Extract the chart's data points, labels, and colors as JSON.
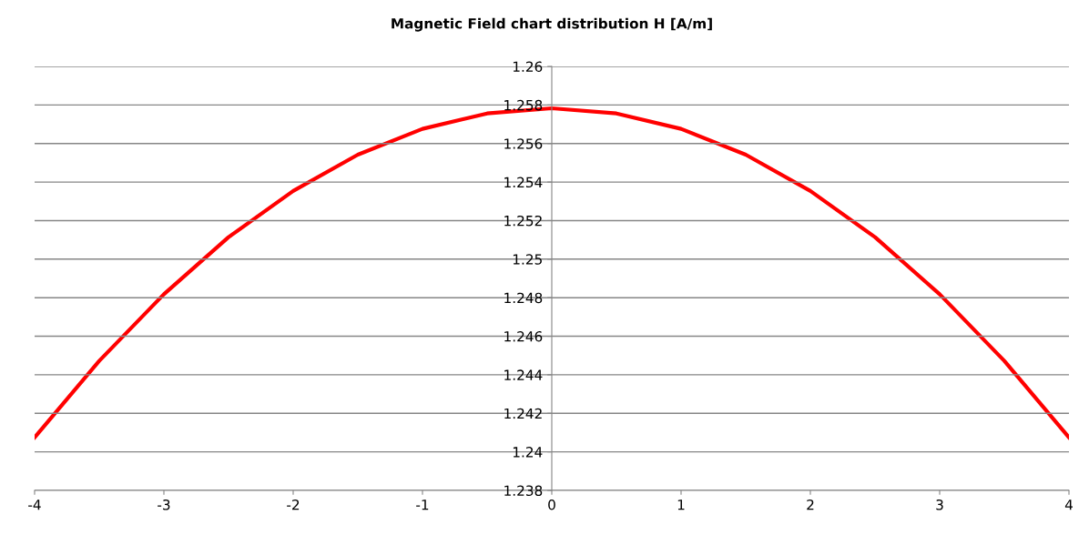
{
  "chart_data": {
    "type": "line",
    "title": "Magnetic Field chart distribution H [A/m]",
    "x": [
      -4,
      -3.5,
      -3,
      -2.5,
      -2,
      -1.5,
      -1,
      -0.5,
      0,
      0.5,
      1,
      1.5,
      2,
      2.5,
      3,
      3.5,
      4
    ],
    "series": [
      {
        "color": "#ff0000",
        "values": [
          1.24075,
          1.24472,
          1.24818,
          1.25114,
          1.25354,
          1.25542,
          1.25676,
          1.25756,
          1.25783,
          1.25756,
          1.25676,
          1.25542,
          1.25354,
          1.25114,
          1.24818,
          1.24472,
          1.24075
        ]
      }
    ],
    "xlim": [
      -4,
      4
    ],
    "xticks": [
      -4,
      -3,
      -2,
      -1,
      0,
      1,
      2,
      3,
      4
    ],
    "ylim": [
      1.238,
      1.26
    ],
    "yticks": [
      1.238,
      1.24,
      1.242,
      1.244,
      1.246,
      1.248,
      1.25,
      1.252,
      1.254,
      1.256,
      1.258,
      1.26
    ],
    "grid": "y",
    "marker": "none",
    "line_style": "solid"
  }
}
